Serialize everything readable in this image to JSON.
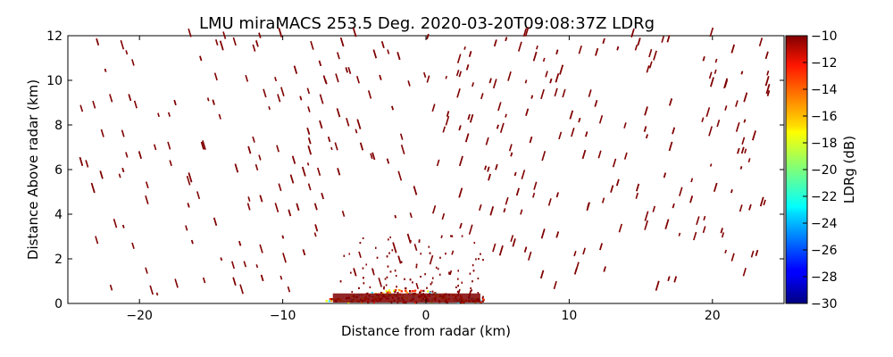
{
  "chart_data": {
    "type": "heatmap",
    "title": "LMU miraMACS 253.5 Deg. 2020-03-20T09:08:37Z  LDRg",
    "xlabel": "Distance from radar (km)",
    "ylabel": "Distance Above radar  (km)",
    "xlim": [
      -25,
      25
    ],
    "ylim": [
      0,
      12
    ],
    "xticks": [
      -20,
      -10,
      0,
      10,
      20
    ],
    "xtick_labels": [
      "−20",
      "−10",
      "0",
      "10",
      "20"
    ],
    "yticks": [
      0,
      2,
      4,
      6,
      8,
      10,
      12
    ],
    "ytick_labels": [
      "0",
      "2",
      "4",
      "6",
      "8",
      "10",
      "12"
    ],
    "colorbar": {
      "label": "LDRg (dB)",
      "range": [
        -30,
        -10
      ],
      "ticks": [
        -10,
        -12,
        -14,
        -16,
        -18,
        -20,
        -22,
        -24,
        -26,
        -28,
        -30
      ],
      "tick_labels": [
        "−10",
        "−12",
        "−14",
        "−16",
        "−18",
        "−20",
        "−22",
        "−24",
        "−26",
        "−28",
        "−30"
      ],
      "colormap": "jet"
    },
    "dense_region": {
      "x_range": [
        -7,
        4
      ],
      "y_range": [
        0,
        0.6
      ],
      "ldr_range": [
        -16,
        -10
      ]
    },
    "scatter_region": {
      "x_range": [
        -24,
        24
      ],
      "y_range": [
        0,
        12
      ],
      "ldr_typical": -10
    },
    "colors": {
      "dominant": "#800000",
      "accent_red": "#ff2a00",
      "accent_orange": "#ff9d00",
      "accent_yellow": "#e8ff10",
      "accent_cyan": "#40e0ff"
    }
  }
}
